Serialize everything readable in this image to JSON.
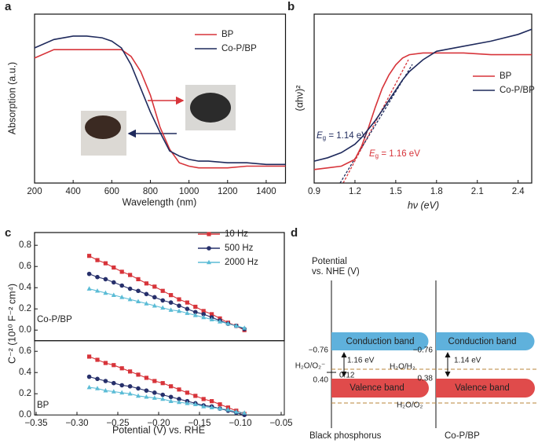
{
  "panel_labels": [
    "a",
    "b",
    "c",
    "d"
  ],
  "chart_data": [
    {
      "type": "line",
      "xlabel": "Wavelength (nm)",
      "ylabel": "Absorption (a.u.)",
      "xlim": [
        200,
        1500
      ],
      "xticks": [
        200,
        400,
        600,
        800,
        1000,
        1200,
        1400
      ],
      "ylim": [
        0,
        1
      ],
      "legend": "upper right",
      "x": [
        200,
        300,
        400,
        470,
        550,
        600,
        650,
        700,
        750,
        800,
        850,
        900,
        950,
        1000,
        1050,
        1100,
        1200,
        1300,
        1400,
        1500
      ],
      "series": [
        {
          "name": "BP",
          "color": "#d7343a",
          "values": [
            0.74,
            0.79,
            0.79,
            0.79,
            0.79,
            0.79,
            0.79,
            0.75,
            0.66,
            0.52,
            0.33,
            0.2,
            0.12,
            0.1,
            0.09,
            0.09,
            0.09,
            0.1,
            0.1,
            0.1
          ]
        },
        {
          "name": "Co-P/BP",
          "color": "#1f2a5c",
          "values": [
            0.8,
            0.85,
            0.87,
            0.87,
            0.86,
            0.84,
            0.8,
            0.7,
            0.56,
            0.42,
            0.3,
            0.19,
            0.16,
            0.14,
            0.13,
            0.13,
            0.12,
            0.12,
            0.11,
            0.11
          ]
        }
      ]
    },
    {
      "type": "line",
      "xlabel": "hν (eV)",
      "ylabel": "(αhν)²",
      "xlim": [
        0.9,
        2.5
      ],
      "xticks": [
        0.9,
        1.2,
        1.5,
        1.8,
        2.1,
        2.4
      ],
      "ylim": [
        0,
        1
      ],
      "legend": "right",
      "x": [
        0.9,
        1.0,
        1.1,
        1.2,
        1.25,
        1.3,
        1.35,
        1.4,
        1.45,
        1.5,
        1.55,
        1.6,
        1.7,
        1.8,
        2.0,
        2.2,
        2.4,
        2.5
      ],
      "series": [
        {
          "name": "BP",
          "color": "#d7343a",
          "values": [
            0.08,
            0.09,
            0.1,
            0.14,
            0.22,
            0.33,
            0.45,
            0.56,
            0.64,
            0.7,
            0.74,
            0.76,
            0.77,
            0.77,
            0.77,
            0.76,
            0.76,
            0.76
          ]
        },
        {
          "name": "Co-P/BP",
          "color": "#1f2a5c",
          "values": [
            0.13,
            0.15,
            0.18,
            0.23,
            0.27,
            0.32,
            0.37,
            0.43,
            0.49,
            0.55,
            0.61,
            0.66,
            0.73,
            0.78,
            0.81,
            0.84,
            0.88,
            0.91
          ]
        }
      ],
      "annotations": [
        {
          "symbol": "E",
          "subscript": "g",
          "rest": " = 1.14 eV",
          "color": "#1f2a5c"
        },
        {
          "symbol": "E",
          "subscript": "g",
          "rest": " = 1.16 eV",
          "color": "#d7343a"
        }
      ]
    },
    {
      "type": "line",
      "ylabel": "C⁻² (10¹⁰ F⁻² cm⁴)",
      "label": "Co-P/BP",
      "xlim": [
        -0.35,
        -0.05
      ],
      "ylim": [
        -0.1,
        0.92
      ],
      "legend": "upper right",
      "yticks": [
        {
          "value": 0,
          "label": "0.0"
        },
        {
          "value": 0.2,
          "label": "0.2"
        },
        {
          "value": 0.4,
          "label": "0.4"
        },
        {
          "value": 0.6,
          "label": "0.6"
        },
        {
          "value": 0.8,
          "label": "0.8"
        }
      ],
      "x": [
        -0.285,
        -0.275,
        -0.265,
        -0.255,
        -0.245,
        -0.235,
        -0.225,
        -0.215,
        -0.205,
        -0.195,
        -0.185,
        -0.175,
        -0.165,
        -0.155,
        -0.145,
        -0.135,
        -0.125,
        -0.115,
        -0.105,
        -0.095
      ],
      "series": [
        {
          "name": "10 Hz",
          "color": "#d7343a",
          "marker": "square",
          "values": [
            0.7,
            0.66,
            0.63,
            0.59,
            0.55,
            0.52,
            0.48,
            0.44,
            0.41,
            0.37,
            0.33,
            0.29,
            0.26,
            0.22,
            0.18,
            0.15,
            0.11,
            0.07,
            0.04,
            0.0
          ]
        },
        {
          "name": "500 Hz",
          "color": "#27306b",
          "marker": "circle",
          "values": [
            0.53,
            0.5,
            0.48,
            0.45,
            0.42,
            0.39,
            0.37,
            0.34,
            0.31,
            0.28,
            0.26,
            0.23,
            0.2,
            0.17,
            0.15,
            0.12,
            0.09,
            0.06,
            0.04,
            0.01
          ]
        },
        {
          "name": "2000 Hz",
          "color": "#5bbcd6",
          "marker": "triangle",
          "values": [
            0.39,
            0.37,
            0.35,
            0.33,
            0.31,
            0.29,
            0.27,
            0.25,
            0.23,
            0.21,
            0.19,
            0.18,
            0.16,
            0.14,
            0.12,
            0.1,
            0.08,
            0.06,
            0.04,
            0.02
          ]
        }
      ]
    },
    {
      "type": "line",
      "xlabel": "Potential (V) vs. RHE",
      "label": "BP",
      "xlim": [
        -0.35,
        -0.05
      ],
      "ylim": [
        0,
        0.7
      ],
      "xticks": [
        {
          "value": -0.35,
          "label": "−0.35"
        },
        {
          "value": -0.3,
          "label": "−0.30"
        },
        {
          "value": -0.25,
          "label": "−0.25"
        },
        {
          "value": -0.2,
          "label": "−0.20"
        },
        {
          "value": -0.15,
          "label": "−0.15"
        },
        {
          "value": -0.1,
          "label": "−0.10"
        },
        {
          "value": -0.05,
          "label": "−0.05"
        }
      ],
      "yticks": [
        {
          "value": 0,
          "label": "0.0"
        },
        {
          "value": 0.2,
          "label": "0.2"
        },
        {
          "value": 0.4,
          "label": "0.4"
        },
        {
          "value": 0.6,
          "label": "0.6"
        }
      ],
      "x": [
        -0.285,
        -0.275,
        -0.265,
        -0.255,
        -0.245,
        -0.235,
        -0.225,
        -0.215,
        -0.205,
        -0.195,
        -0.185,
        -0.175,
        -0.165,
        -0.155,
        -0.145,
        -0.135,
        -0.125,
        -0.115,
        -0.105,
        -0.095
      ],
      "series": [
        {
          "color": "#d7343a",
          "marker": "square",
          "values": [
            0.55,
            0.52,
            0.49,
            0.47,
            0.44,
            0.41,
            0.38,
            0.35,
            0.32,
            0.3,
            0.27,
            0.24,
            0.21,
            0.18,
            0.15,
            0.13,
            0.1,
            0.07,
            0.04,
            0.01
          ]
        },
        {
          "color": "#27306b",
          "marker": "circle",
          "values": [
            0.36,
            0.34,
            0.32,
            0.3,
            0.28,
            0.27,
            0.25,
            0.23,
            0.21,
            0.19,
            0.17,
            0.15,
            0.13,
            0.11,
            0.09,
            0.08,
            0.06,
            0.04,
            0.02,
            0.0
          ]
        },
        {
          "color": "#5bbcd6",
          "marker": "triangle",
          "values": [
            0.26,
            0.25,
            0.23,
            0.22,
            0.21,
            0.2,
            0.18,
            0.17,
            0.16,
            0.15,
            0.13,
            0.12,
            0.11,
            0.1,
            0.08,
            0.07,
            0.06,
            0.05,
            0.03,
            0.02
          ]
        }
      ]
    }
  ],
  "diagram": {
    "axis_title": [
      "Potential",
      "vs. NHE (V)"
    ],
    "conduction": "Conduction band",
    "valence": "Valence band",
    "left": {
      "name": "Black phosphorus",
      "cb": "−0.76",
      "vb": "0.40",
      "gap": "1.16 eV"
    },
    "right": {
      "name": "Co-P/BP",
      "cb": "−0.76",
      "vb": "0.38",
      "gap": "1.14 eV"
    },
    "levels": {
      "o2": "H₂O/O₂⁻",
      "o2_value": "0.12",
      "h2": "H₂O/H₂",
      "oxygen": "H₂O/O₂"
    }
  }
}
